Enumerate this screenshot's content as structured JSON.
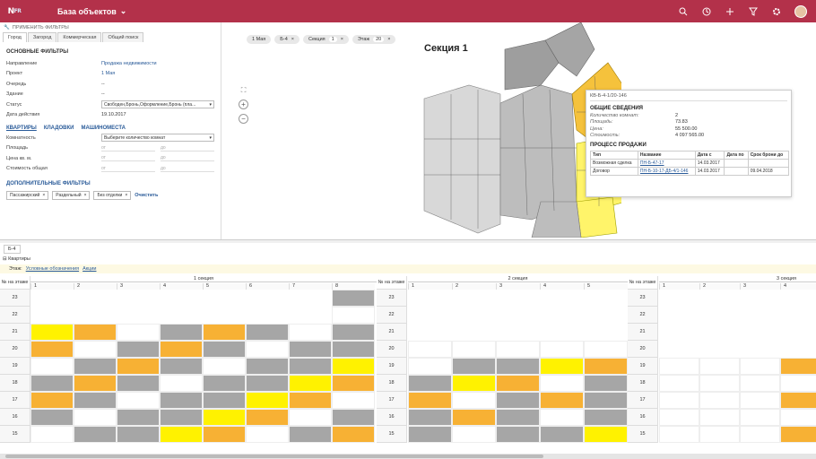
{
  "app": {
    "logo": "N",
    "logo_sup": "FR",
    "title": "База объектов"
  },
  "filters": {
    "header": "ПРИМЕНИТЬ ФИЛЬТРЫ",
    "tabs": [
      "Город",
      "Загород",
      "Коммерческая",
      "Общий поиск"
    ],
    "main_title": "ОСНОВНЫЕ ФИЛЬТРЫ",
    "rows": [
      {
        "label": "Направление",
        "value": "Продажа недвижимости"
      },
      {
        "label": "Проект",
        "value": "1 Мая"
      },
      {
        "label": "Очередь",
        "value": "--"
      },
      {
        "label": "Здание",
        "value": "--"
      },
      {
        "label": "Статус",
        "value": "Свободен,Бронь,Оформление,Бронь (пла..."
      },
      {
        "label": "Дата действия",
        "value": "19.10.2017"
      }
    ],
    "links": [
      "КВАРТИРЫ",
      "КЛАДОВКИ",
      "МАШИНОМЕСТА"
    ],
    "rooms_label": "Комнатность",
    "rooms_placeholder": "Выберите количество комнат",
    "ranges": [
      "Площадь",
      "Цена кв. м.",
      "Стоимость общая"
    ],
    "from": "от",
    "to": "до",
    "extra_title": "ДОПОЛНИТЕЛЬНЫЕ ФИЛЬТРЫ",
    "chips": [
      "Пассажирский",
      "Раздельный",
      "Без отделки"
    ],
    "clear": "Очистить"
  },
  "map": {
    "chips": [
      {
        "t": "1 Мая",
        "n": ""
      },
      {
        "t": "Б-4",
        "n": ""
      },
      {
        "t": "Секция",
        "n": "1"
      },
      {
        "t": "Этаж",
        "n": "20"
      }
    ],
    "section_title": "Секция 1",
    "popup": {
      "id": "КВ-Б-4-1/20-146",
      "general": "ОБЩИЕ СВЕДЕНИЯ",
      "fields": [
        {
          "k": "Количество комнат:",
          "v": "2"
        },
        {
          "k": "Площадь:",
          "v": "73.83"
        },
        {
          "k": "Цена:",
          "v": "55 500.00"
        },
        {
          "k": "Стоимость:",
          "v": "4 097 565.00"
        }
      ],
      "process": "ПРОЦЕСС ПРОДАЖИ",
      "headers": [
        "Тип",
        "Название",
        "Дата с",
        "Дата по",
        "Срок брони до"
      ],
      "rows": [
        [
          "Возможная сделка",
          "ПН-Б-47-17",
          "14.03.2017",
          "",
          ""
        ],
        [
          "Договор",
          "ПН-Б-10-17-ДБ-4/1-146",
          "14.03.2017",
          "",
          "09.04.2018"
        ]
      ]
    }
  },
  "bottom": {
    "tab": "Б-4",
    "kv": "Квартиры",
    "etazh": "Этаж:",
    "links": [
      "Условные обозначения",
      "Акции"
    ],
    "floor_hdr": "№ на этаже",
    "sections": [
      "1 секция",
      "2 секция",
      "3 секция"
    ],
    "floors": [
      "23",
      "22",
      "21",
      "20",
      "19",
      "18",
      "17",
      "16",
      "15"
    ]
  }
}
